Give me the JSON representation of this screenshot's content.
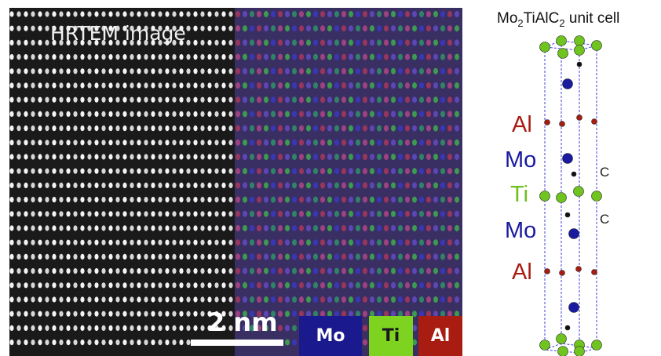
{
  "micrograph": {
    "hrtem_label": "HRTEM image",
    "scale_label": "2 nm"
  },
  "legend": [
    {
      "label": "Mo",
      "color": "#1a1a8e",
      "text_color": "#ffffff"
    },
    {
      "label": "Ti",
      "color": "#7ed321",
      "text_color": "#1a1a1a"
    },
    {
      "label": "Al",
      "color": "#a81c12",
      "text_color": "#ffffff"
    }
  ],
  "unit_cell": {
    "title_main": "Mo",
    "title_sub1": "2",
    "title_mid": "TiAlC",
    "title_sub2": "2",
    "title_tail": " unit cell",
    "layer_labels": [
      {
        "text": "Al",
        "color": "#a81c12"
      },
      {
        "text": "Mo",
        "color": "#1a1aa0"
      },
      {
        "text": "Ti",
        "color": "#6fbf1e"
      },
      {
        "text": "Mo",
        "color": "#1a1aa0"
      },
      {
        "text": "Al",
        "color": "#a81c12"
      }
    ],
    "c_labels": [
      "C",
      "C"
    ],
    "atom_colors": {
      "Mo": "#1a1aa0",
      "Ti": "#6fc41f",
      "Al": "#a81c12",
      "C": "#111111"
    }
  }
}
